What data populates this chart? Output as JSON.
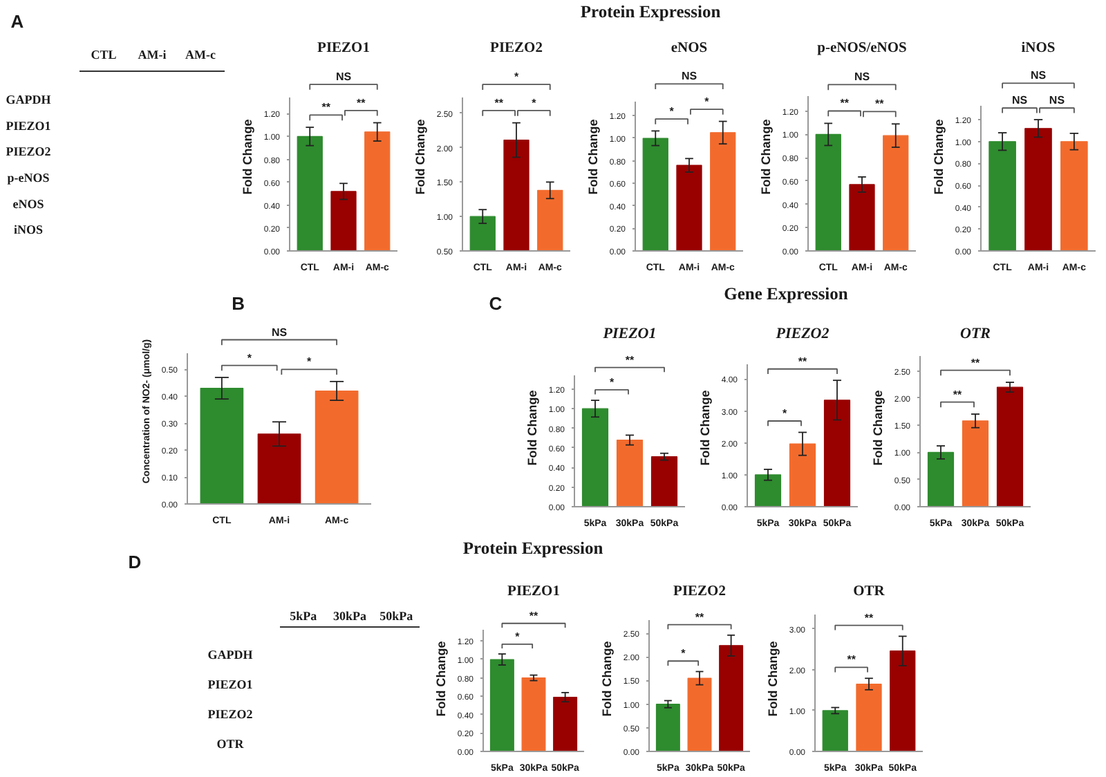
{
  "chart_data": [
    {
      "type": "other",
      "title": "Protein Expression",
      "annotations": [
        "A"
      ]
    },
    {
      "type": "other",
      "categories": [
        "CTL",
        "AM-i",
        "AM-c"
      ],
      "y_categories": [
        "GAPDH",
        "PIEZO1",
        "PIEZO2",
        "p-eNOS",
        "eNOS",
        "iNOS"
      ]
    },
    {
      "type": "bar",
      "title": "PIEZO1",
      "ylabel": "Fold Change",
      "categories": [
        "CTL",
        "AM-i",
        "AM-c"
      ],
      "values": [
        1.0,
        0.52,
        1.04
      ],
      "colors": [
        "#2e8b2e",
        "#990000",
        "#f26b2d"
      ],
      "errors": [
        0.08,
        0.07,
        0.08
      ],
      "ylim": [
        0,
        1.34
      ],
      "yticks": [
        {
          "value": 0,
          "label": "0.00"
        },
        {
          "value": 0.2,
          "label": "0.20"
        },
        {
          "value": 0.4,
          "label": "0.40"
        },
        {
          "value": 0.6,
          "label": "0.60"
        },
        {
          "value": 0.8,
          "label": "0.80"
        },
        {
          "value": 1,
          "label": "1.00"
        },
        {
          "value": 1.2,
          "label": "1.20"
        }
      ],
      "annotations": [
        "NS",
        "**",
        "**"
      ]
    },
    {
      "type": "bar",
      "title": "PIEZO2",
      "ylabel": "Fold Change",
      "categories": [
        "CTL",
        "AM-i",
        "AM-c"
      ],
      "values": [
        1.0,
        2.11,
        1.38
      ],
      "colors": [
        "#2e8b2e",
        "#990000",
        "#f26b2d"
      ],
      "errors": [
        0.1,
        0.25,
        0.12
      ],
      "ylim": [
        0.5,
        2.73
      ],
      "yticks": [
        {
          "value": 0.5,
          "label": "0.50"
        },
        {
          "value": 1,
          "label": "1.00"
        },
        {
          "value": 1.5,
          "label": "1.50"
        },
        {
          "value": 2,
          "label": "2.00"
        },
        {
          "value": 2.5,
          "label": "2.50"
        }
      ],
      "annotations": [
        "*",
        "**",
        "*"
      ]
    },
    {
      "type": "bar",
      "title": "eNOS",
      "ylabel": "Fold Change",
      "categories": [
        "CTL",
        "AM-i",
        "AM-c"
      ],
      "values": [
        1.0,
        0.76,
        1.05
      ],
      "colors": [
        "#2e8b2e",
        "#990000",
        "#f26b2d"
      ],
      "errors": [
        0.065,
        0.06,
        0.1
      ],
      "ylim": [
        0,
        1.33
      ],
      "yticks": [
        {
          "value": 0,
          "label": "0.00"
        },
        {
          "value": 0.2,
          "label": "0.20"
        },
        {
          "value": 0.4,
          "label": "0.40"
        },
        {
          "value": 0.6,
          "label": "0.60"
        },
        {
          "value": 0.8,
          "label": "0.80"
        },
        {
          "value": 1,
          "label": "1.00"
        },
        {
          "value": 1.2,
          "label": "1.20"
        }
      ],
      "annotations": [
        "NS",
        "*",
        "*"
      ]
    },
    {
      "type": "bar",
      "title": "p-eNOS/eNOS",
      "ylabel": "Fold Change",
      "categories": [
        "CTL",
        "AM-i",
        "AM-c"
      ],
      "values": [
        1.0,
        0.57,
        0.99
      ],
      "colors": [
        "#2e8b2e",
        "#990000",
        "#f26b2d"
      ],
      "errors": [
        0.095,
        0.065,
        0.1
      ],
      "ylim": [
        0,
        1.33
      ],
      "yticks": [
        {
          "value": 0,
          "label": "0.00"
        },
        {
          "value": 0.2,
          "label": "0.20"
        },
        {
          "value": 0.4,
          "label": "0.40"
        },
        {
          "value": 0.6,
          "label": "0.60"
        },
        {
          "value": 0.8,
          "label": "0.80"
        },
        {
          "value": 1,
          "label": "1.00"
        },
        {
          "value": 1.2,
          "label": "1.20"
        }
      ],
      "annotations": [
        "NS",
        "**",
        "**"
      ]
    },
    {
      "type": "bar",
      "title": "iNOS",
      "ylabel": "Fold Change",
      "categories": [
        "CTL",
        "AM-i",
        "AM-c"
      ],
      "values": [
        1.0,
        1.12,
        1.0
      ],
      "colors": [
        "#2e8b2e",
        "#990000",
        "#f26b2d"
      ],
      "errors": [
        0.08,
        0.08,
        0.075
      ],
      "ylim": [
        0,
        1.33
      ],
      "yticks": [
        {
          "value": 0,
          "label": "0.00"
        },
        {
          "value": 0.2,
          "label": "0.20"
        },
        {
          "value": 0.4,
          "label": "0.40"
        },
        {
          "value": 0.6,
          "label": "0.60"
        },
        {
          "value": 0.8,
          "label": "0.80"
        },
        {
          "value": 1,
          "label": "1.00"
        },
        {
          "value": 1.2,
          "label": "1.20"
        }
      ],
      "annotations": [
        "NS",
        "NS",
        "NS"
      ]
    },
    {
      "type": "other",
      "annotations": [
        "B"
      ]
    },
    {
      "type": "bar",
      "ylabel": "Concentration of NO2- (μmol/g)",
      "categories": [
        "CTL",
        "AM-i",
        "AM-c"
      ],
      "values": [
        0.43,
        0.26,
        0.42
      ],
      "colors": [
        "#2e8b2e",
        "#990000",
        "#f26b2d"
      ],
      "errors": [
        0.04,
        0.045,
        0.035
      ],
      "ylim": [
        0,
        0.56
      ],
      "yticks": [
        {
          "value": 0,
          "label": "0.00"
        },
        {
          "value": 0.1,
          "label": "0.10"
        },
        {
          "value": 0.2,
          "label": "0.20"
        },
        {
          "value": 0.3,
          "label": "0.30"
        },
        {
          "value": 0.4,
          "label": "0.40"
        },
        {
          "value": 0.5,
          "label": "0.50"
        }
      ],
      "annotations": [
        "NS",
        "*",
        "*"
      ]
    },
    {
      "type": "other",
      "title": "Gene Expression",
      "annotations": [
        "C"
      ]
    },
    {
      "type": "bar",
      "title": "PIEZO1",
      "ylabel": "Fold Change",
      "categories": [
        "5kPa",
        "30kPa",
        "50kPa"
      ],
      "values": [
        1.0,
        0.68,
        0.51
      ],
      "colors": [
        "#2e8b2e",
        "#f26b2d",
        "#990000"
      ],
      "errors": [
        0.085,
        0.05,
        0.035
      ],
      "ylim": [
        0,
        1.34
      ],
      "yticks": [
        {
          "value": 0,
          "label": "0.00"
        },
        {
          "value": 0.2,
          "label": "0.20"
        },
        {
          "value": 0.4,
          "label": "0.40"
        },
        {
          "value": 0.6,
          "label": "0.60"
        },
        {
          "value": 0.8,
          "label": "0.80"
        },
        {
          "value": 1,
          "label": "1.00"
        },
        {
          "value": 1.2,
          "label": "1.20"
        }
      ],
      "annotations": [
        "**",
        "*"
      ]
    },
    {
      "type": "bar",
      "title": "PIEZO2",
      "ylabel": "Fold Change",
      "categories": [
        "5kPa",
        "30kPa",
        "50kPa"
      ],
      "values": [
        1.0,
        1.97,
        3.34
      ],
      "colors": [
        "#2e8b2e",
        "#f26b2d",
        "#990000"
      ],
      "errors": [
        0.17,
        0.36,
        0.62
      ],
      "ylim": [
        0,
        4.45
      ],
      "yticks": [
        {
          "value": 0,
          "label": "0.00"
        },
        {
          "value": 1,
          "label": "1.00"
        },
        {
          "value": 2,
          "label": "2.00"
        },
        {
          "value": 3,
          "label": "3.00"
        },
        {
          "value": 4,
          "label": "4.00"
        }
      ],
      "annotations": [
        "**",
        "*"
      ]
    },
    {
      "type": "bar",
      "title": "OTR",
      "ylabel": "Fold Change",
      "categories": [
        "5kPa",
        "30kPa",
        "50kPa"
      ],
      "values": [
        1.0,
        1.58,
        2.2
      ],
      "colors": [
        "#2e8b2e",
        "#f26b2d",
        "#990000"
      ],
      "errors": [
        0.12,
        0.125,
        0.09
      ],
      "ylim": [
        0,
        2.78
      ],
      "yticks": [
        {
          "value": 0,
          "label": "0.00"
        },
        {
          "value": 0.5,
          "label": "0.50"
        },
        {
          "value": 1,
          "label": "1.00"
        },
        {
          "value": 1.5,
          "label": "1.50"
        },
        {
          "value": 2,
          "label": "2.00"
        },
        {
          "value": 2.5,
          "label": "2.50"
        }
      ],
      "annotations": [
        "**",
        "**"
      ]
    },
    {
      "type": "other",
      "title": "Protein Expression",
      "annotations": [
        "D"
      ]
    },
    {
      "type": "other",
      "categories": [
        "5kPa",
        "30kPa",
        "50kPa"
      ],
      "y_categories": [
        "GAPDH",
        "PIEZO1",
        "PIEZO2",
        "OTR"
      ]
    },
    {
      "type": "bar",
      "title": "PIEZO1",
      "ylabel": "Fold Change",
      "categories": [
        "5kPa",
        "30kPa",
        "50kPa"
      ],
      "values": [
        1.0,
        0.8,
        0.59
      ],
      "colors": [
        "#2e8b2e",
        "#f26b2d",
        "#990000"
      ],
      "errors": [
        0.06,
        0.03,
        0.05
      ],
      "ylim": [
        0,
        1.33
      ],
      "yticks": [
        {
          "value": 0,
          "label": "0.00"
        },
        {
          "value": 0.2,
          "label": "0.20"
        },
        {
          "value": 0.4,
          "label": "0.40"
        },
        {
          "value": 0.6,
          "label": "0.60"
        },
        {
          "value": 0.8,
          "label": "0.80"
        },
        {
          "value": 1,
          "label": "1.00"
        },
        {
          "value": 1.2,
          "label": "1.20"
        }
      ],
      "annotations": [
        "**",
        "*"
      ]
    },
    {
      "type": "bar",
      "title": "PIEZO2",
      "ylabel": "Fold Change",
      "categories": [
        "5kPa",
        "30kPa",
        "50kPa"
      ],
      "values": [
        1.0,
        1.55,
        2.24
      ],
      "colors": [
        "#2e8b2e",
        "#f26b2d",
        "#990000"
      ],
      "errors": [
        0.075,
        0.14,
        0.22
      ],
      "ylim": [
        0,
        2.78
      ],
      "yticks": [
        {
          "value": 0,
          "label": "0.00"
        },
        {
          "value": 0.5,
          "label": "0.50"
        },
        {
          "value": 1,
          "label": "1.00"
        },
        {
          "value": 1.5,
          "label": "1.50"
        },
        {
          "value": 2,
          "label": "2.00"
        },
        {
          "value": 2.5,
          "label": "2.50"
        }
      ],
      "annotations": [
        "**",
        "*"
      ]
    },
    {
      "type": "bar",
      "title": "OTR",
      "ylabel": "Fold Change",
      "categories": [
        "5kPa",
        "30kPa",
        "50kPa"
      ],
      "values": [
        1.0,
        1.65,
        2.46
      ],
      "colors": [
        "#2e8b2e",
        "#f26b2d",
        "#990000"
      ],
      "errors": [
        0.075,
        0.14,
        0.36
      ],
      "ylim": [
        0,
        3.34
      ],
      "yticks": [
        {
          "value": 0,
          "label": "0.00"
        },
        {
          "value": 1,
          "label": "1.00"
        },
        {
          "value": 2,
          "label": "2.00"
        },
        {
          "value": 3,
          "label": "3.00"
        }
      ],
      "annotations": [
        "**",
        "**"
      ]
    }
  ]
}
